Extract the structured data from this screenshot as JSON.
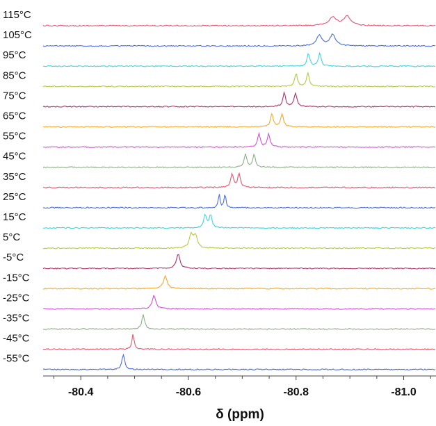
{
  "chart_data": {
    "type": "line",
    "title": "",
    "xlabel": "δ (ppm)",
    "ylabel": "",
    "xlim": [
      -80.33,
      -81.06
    ],
    "x_reversed": true,
    "grid": false,
    "x_ticks": [
      -80.4,
      -80.6,
      -80.8,
      -81.0
    ],
    "x_tick_labels": [
      "-80.4",
      "-80.6",
      "-80.8",
      "-81.0"
    ],
    "series": [
      {
        "name": "115°C",
        "color": "#e8566f",
        "peaks": [
          -80.868,
          -80.895
        ],
        "heights": [
          0.55,
          0.6
        ],
        "width": 0.008
      },
      {
        "name": "105°C",
        "color": "#4a6ee0",
        "peaks": [
          -80.843,
          -80.868
        ],
        "heights": [
          0.7,
          0.75
        ],
        "width": 0.006
      },
      {
        "name": "95°C",
        "color": "#3ed4de",
        "peaks": [
          -80.823,
          -80.844
        ],
        "heights": [
          0.85,
          0.85
        ],
        "width": 0.003
      },
      {
        "name": "85°C",
        "color": "#b5c93f",
        "peaks": [
          -80.8,
          -80.822
        ],
        "heights": [
          0.85,
          0.85
        ],
        "width": 0.003
      },
      {
        "name": "75°C",
        "color": "#b0306b",
        "peaks": [
          -80.778,
          -80.799
        ],
        "heights": [
          0.9,
          0.9
        ],
        "width": 0.003
      },
      {
        "name": "65°C",
        "color": "#f4a928",
        "peaks": [
          -80.755,
          -80.774
        ],
        "heights": [
          0.85,
          0.85
        ],
        "width": 0.003
      },
      {
        "name": "55°C",
        "color": "#d44fd8",
        "peaks": [
          -80.731,
          -80.749
        ],
        "heights": [
          0.85,
          0.85
        ],
        "width": 0.003
      },
      {
        "name": "45°C",
        "color": "#8fae8a",
        "peaks": [
          -80.706,
          -80.722
        ],
        "heights": [
          0.85,
          0.85
        ],
        "width": 0.003
      },
      {
        "name": "35°C",
        "color": "#e8566f",
        "peaks": [
          -80.681,
          -80.694
        ],
        "heights": [
          0.9,
          0.9
        ],
        "width": 0.003
      },
      {
        "name": "25°C",
        "color": "#4a6ee0",
        "peaks": [
          -80.657,
          -80.668
        ],
        "heights": [
          0.95,
          0.95
        ],
        "width": 0.0018
      },
      {
        "name": "15°C",
        "color": "#3ed4de",
        "peaks": [
          -80.631,
          -80.641
        ],
        "heights": [
          0.85,
          0.85
        ],
        "width": 0.003
      },
      {
        "name": "5°C",
        "color": "#b5c93f",
        "peaks": [
          -80.605,
          -80.613
        ],
        "heights": [
          0.85,
          0.8
        ],
        "width": 0.004
      },
      {
        "name": "-5°C",
        "color": "#b0306b",
        "peaks": [
          -80.581
        ],
        "heights": [
          0.95
        ],
        "width": 0.004
      },
      {
        "name": "-15°C",
        "color": "#f4a928",
        "peaks": [
          -80.557
        ],
        "heights": [
          0.85
        ],
        "width": 0.004
      },
      {
        "name": "-25°C",
        "color": "#d44fd8",
        "peaks": [
          -80.536
        ],
        "heights": [
          0.85
        ],
        "width": 0.004
      },
      {
        "name": "-35°C",
        "color": "#8fae8a",
        "peaks": [
          -80.516
        ],
        "heights": [
          0.95
        ],
        "width": 0.003
      },
      {
        "name": "-45°C",
        "color": "#e8566f",
        "peaks": [
          -80.497
        ],
        "heights": [
          1.0
        ],
        "width": 0.0025
      },
      {
        "name": "-55°C",
        "color": "#4a6ee0",
        "peaks": [
          -80.479
        ],
        "heights": [
          1.0
        ],
        "width": 0.003
      }
    ]
  }
}
